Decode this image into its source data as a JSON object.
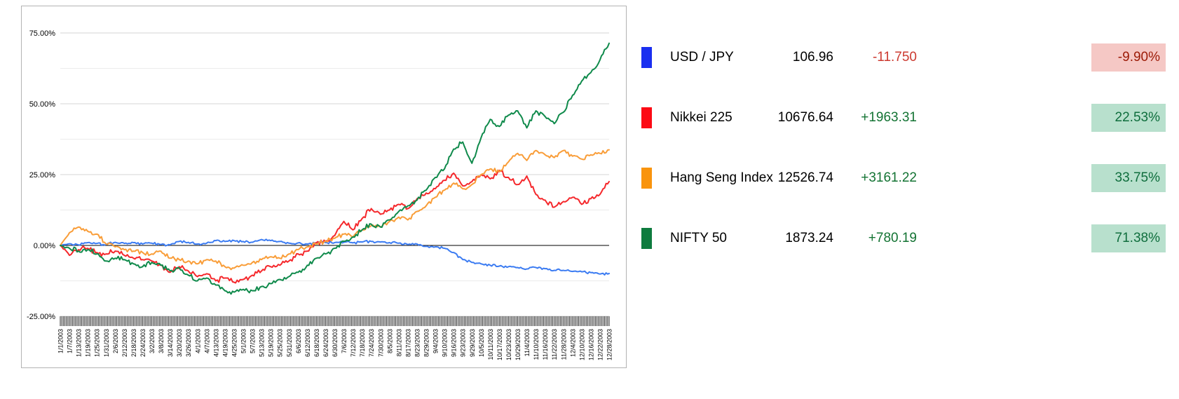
{
  "chart_data": {
    "type": "line",
    "title": "",
    "xlabel": "",
    "ylabel": "",
    "ylim": [
      -25,
      75
    ],
    "grid": "horizontal, minor lines every 12.5%, zero line black",
    "legend_position": "right-table",
    "y_ticks": [
      {
        "label": "75.00%",
        "value": 75
      },
      {
        "label": "50.00%",
        "value": 50
      },
      {
        "label": "25.00%",
        "value": 25
      },
      {
        "label": "0.00%",
        "value": 0
      },
      {
        "label": "-25.00%",
        "value": -25
      }
    ],
    "x_labels": [
      "1/1/2003",
      "1/7/2003",
      "1/13/2003",
      "1/19/2003",
      "1/25/2003",
      "1/31/2003",
      "2/6/2003",
      "2/12/2003",
      "2/18/2003",
      "2/24/2003",
      "3/2/2003",
      "3/8/2003",
      "3/14/2003",
      "3/20/2003",
      "3/26/2003",
      "4/1/2003",
      "4/7/2003",
      "4/13/2003",
      "4/19/2003",
      "4/25/2003",
      "5/1/2003",
      "5/7/2003",
      "5/13/2003",
      "5/19/2003",
      "5/25/2003",
      "5/31/2003",
      "6/6/2003",
      "6/12/2003",
      "6/18/2003",
      "6/24/2003",
      "6/30/2003",
      "7/6/2003",
      "7/12/2003",
      "7/18/2003",
      "7/24/2003",
      "7/30/2003",
      "8/5/2003",
      "8/11/2003",
      "8/17/2003",
      "8/23/2003",
      "8/29/2003",
      "9/4/2003",
      "9/10/2003",
      "9/16/2003",
      "9/23/2003",
      "9/29/2003",
      "10/5/2003",
      "10/11/2003",
      "10/17/2003",
      "10/23/2003",
      "10/29/2003",
      "11/4/2003",
      "11/10/2003",
      "11/16/2003",
      "11/22/2003",
      "11/28/2003",
      "12/4/2003",
      "12/10/2003",
      "12/16/2003",
      "12/22/2003",
      "12/28/2003"
    ],
    "series": [
      {
        "name": "USD / JPY",
        "color": "#3c7cf2",
        "noise": 0.5,
        "values": [
          0,
          0.6,
          0.2,
          1.0,
          0.7,
          0.3,
          1.1,
          0.7,
          1.0,
          0.5,
          0.8,
          0.3,
          0.2,
          1.4,
          1.1,
          0.5,
          0.8,
          1.7,
          1.4,
          1.7,
          1.4,
          1.1,
          2.1,
          1.7,
          1.4,
          0.8,
          0.9,
          0.5,
          0.7,
          1.0,
          1.0,
          1.1,
          0.9,
          1.2,
          1.4,
          1.2,
          1.0,
          0.8,
          0.3,
          0.5,
          -0.3,
          -0.5,
          -1.0,
          -2.5,
          -5.0,
          -6.0,
          -6.5,
          -7.0,
          -7.3,
          -7.5,
          -7.8,
          -8.3,
          -7.8,
          -8.2,
          -8.8,
          -8.8,
          -9.2,
          -9.3,
          -9.6,
          -10.1,
          -9.9
        ]
      },
      {
        "name": "Nikkei 225",
        "color": "#f5282c",
        "noise": 1.0,
        "values": [
          0,
          -3.5,
          -1.5,
          -1.0,
          -2.5,
          -3.0,
          -2.0,
          -3.5,
          -4.5,
          -5.0,
          -5.5,
          -7.0,
          -9.5,
          -7.5,
          -9.0,
          -11.0,
          -10.0,
          -12.5,
          -11.5,
          -13.0,
          -12.0,
          -10.5,
          -9.0,
          -7.5,
          -7.0,
          -5.5,
          -3.0,
          -2.0,
          1.0,
          1.5,
          3.5,
          8.5,
          5.5,
          9.5,
          13.0,
          11.0,
          12.5,
          14.5,
          13.0,
          16.5,
          18.5,
          20.0,
          23.0,
          25.5,
          21.0,
          22.5,
          25.0,
          23.5,
          26.5,
          24.0,
          21.5,
          24.5,
          18.0,
          16.0,
          13.5,
          15.5,
          17.0,
          14.5,
          16.5,
          18.0,
          22.53
        ]
      },
      {
        "name": "Hang Seng Index",
        "color": "#f99d38",
        "noise": 0.85,
        "values": [
          0,
          4.5,
          6.5,
          5.0,
          4.0,
          0.5,
          -0.5,
          -1.5,
          -2.0,
          -2.5,
          -3.0,
          -2.0,
          -4.5,
          -5.0,
          -5.5,
          -6.5,
          -5.0,
          -5.5,
          -7.5,
          -8.0,
          -7.0,
          -6.0,
          -5.0,
          -4.0,
          -4.5,
          -3.0,
          -1.5,
          -0.5,
          0.5,
          1.5,
          2.5,
          4.0,
          3.0,
          5.5,
          7.0,
          6.5,
          8.5,
          10.0,
          9.0,
          12.0,
          14.0,
          17.0,
          19.5,
          22.0,
          20.0,
          21.5,
          25.0,
          27.0,
          26.0,
          29.5,
          32.5,
          30.0,
          33.5,
          32.0,
          31.0,
          33.5,
          31.5,
          30.5,
          32.0,
          32.5,
          33.75
        ]
      },
      {
        "name": "NIFTY 50",
        "color": "#0f8a4b",
        "noise": 1.0,
        "values": [
          0,
          -1.0,
          -2.0,
          -1.5,
          -3.0,
          -5.5,
          -4.5,
          -5.0,
          -6.5,
          -7.5,
          -6.0,
          -7.0,
          -9.0,
          -8.0,
          -10.5,
          -12.5,
          -11.5,
          -14.0,
          -16.0,
          -16.5,
          -15.5,
          -16.0,
          -14.5,
          -13.5,
          -12.0,
          -11.0,
          -9.5,
          -7.0,
          -4.5,
          -3.0,
          -1.0,
          1.5,
          3.0,
          5.5,
          7.5,
          6.5,
          9.0,
          12.0,
          14.0,
          16.0,
          19.5,
          24.0,
          27.0,
          34.0,
          36.5,
          29.0,
          38.0,
          44.5,
          42.0,
          46.0,
          47.5,
          41.5,
          47.5,
          45.5,
          43.0,
          47.0,
          53.0,
          58.0,
          61.0,
          65.5,
          71.38
        ]
      }
    ]
  },
  "legend": {
    "rows": [
      {
        "name": "USD / JPY",
        "price": "106.96",
        "change": "-11.750",
        "pct": "-9.90%",
        "trend": "down",
        "swatch": "#1a2ff0"
      },
      {
        "name": "Nikkei 225",
        "price": "10676.64",
        "change": "+1963.31",
        "pct": "22.53%",
        "trend": "up",
        "swatch": "#fc0a14"
      },
      {
        "name": "Hang Seng Index",
        "price": "12526.74",
        "change": "+3161.22",
        "pct": "33.75%",
        "trend": "up",
        "swatch": "#f9940d"
      },
      {
        "name": "NIFTY 50",
        "price": "1873.24",
        "change": "+780.19",
        "pct": "71.38%",
        "trend": "up",
        "swatch": "#0e7b3e"
      }
    ]
  },
  "colors": {
    "change_pos": "#137333",
    "change_neg": "#cc3a30",
    "chip_pos_bg": "#b8e0cd",
    "chip_pos_text": "#0f6e3d",
    "chip_neg_bg": "#f5c8c5",
    "chip_neg_text": "#9c1a06",
    "grid_major": "#d6d6d6",
    "grid_minor": "#ebebeb",
    "zero_line": "#000000",
    "tick_color": "#2a2a2a"
  }
}
